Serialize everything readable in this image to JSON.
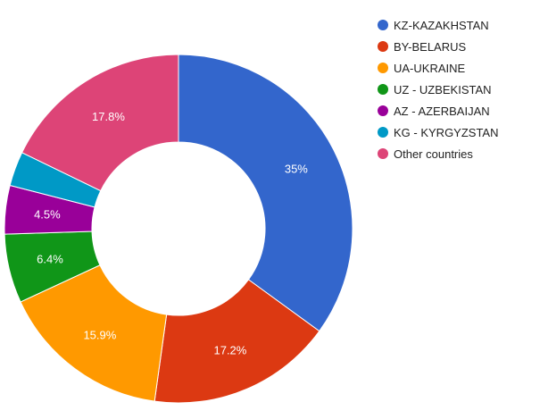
{
  "chart_data": {
    "type": "pie",
    "donut": true,
    "legend_position": "right",
    "slices": [
      {
        "label": "KZ-KAZAKHSTAN",
        "value": 35,
        "value_label": "35%",
        "color": "#3366cc"
      },
      {
        "label": "BY-BELARUS",
        "value": 17.2,
        "value_label": "17.2%",
        "color": "#dc3912"
      },
      {
        "label": "UA-UKRAINE",
        "value": 15.9,
        "value_label": "15.9%",
        "color": "#ff9900"
      },
      {
        "label": "UZ - UZBEKISTAN",
        "value": 6.4,
        "value_label": "6.4%",
        "color": "#109618"
      },
      {
        "label": "AZ - AZERBAIJAN",
        "value": 4.5,
        "value_label": "4.5%",
        "color": "#990099"
      },
      {
        "label": "KG - KYRGYZSTAN",
        "value": 3.2,
        "value_label": "",
        "color": "#0099c6"
      },
      {
        "label": "Other countries",
        "value": 17.8,
        "value_label": "17.8%",
        "color": "#dd4477"
      }
    ]
  }
}
